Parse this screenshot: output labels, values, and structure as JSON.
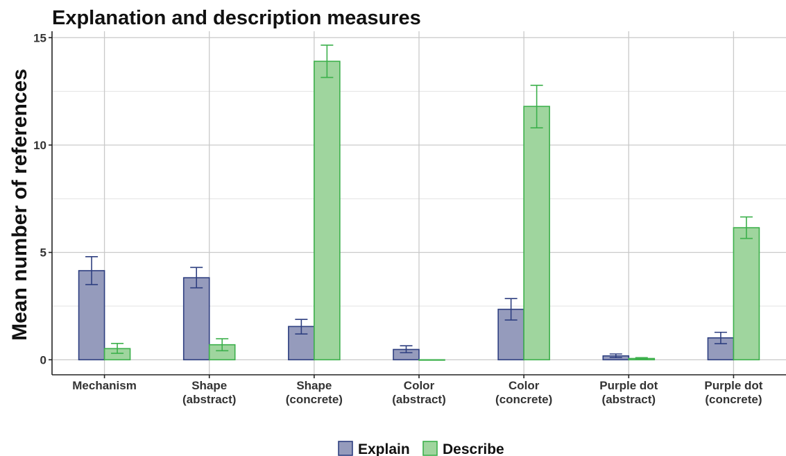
{
  "chart_data": {
    "type": "bar",
    "title": "Explanation and description measures",
    "xlabel": "",
    "ylabel": "Mean number of references",
    "ylim": [
      -0.7,
      15.3
    ],
    "yticks": [
      0,
      5,
      10,
      15
    ],
    "grid": true,
    "legend_position": "bottom",
    "categories": [
      [
        "Mechanism"
      ],
      [
        "Shape",
        "(abstract)"
      ],
      [
        "Shape",
        "(concrete)"
      ],
      [
        "Color",
        "(abstract)"
      ],
      [
        "Color",
        "(concrete)"
      ],
      [
        "Purple dot",
        "(abstract)"
      ],
      [
        "Purple dot",
        "(concrete)"
      ]
    ],
    "series": [
      {
        "name": "Explain",
        "fill": "#959bbc",
        "stroke": "#2e3f80",
        "values": [
          4.15,
          3.82,
          1.55,
          0.48,
          2.35,
          0.18,
          1.02
        ],
        "error_low": [
          3.5,
          3.35,
          1.2,
          0.33,
          1.85,
          0.1,
          0.75
        ],
        "error_high": [
          4.8,
          4.3,
          1.88,
          0.65,
          2.85,
          0.27,
          1.28
        ]
      },
      {
        "name": "Describe",
        "fill": "#9fd59e",
        "stroke": "#3cb04b",
        "values": [
          0.52,
          0.7,
          13.9,
          0.0,
          11.8,
          0.06,
          6.15
        ],
        "error_low": [
          0.3,
          0.42,
          13.15,
          0.0,
          10.8,
          0.02,
          5.65
        ],
        "error_high": [
          0.76,
          0.98,
          14.65,
          0.0,
          12.78,
          0.1,
          6.65
        ]
      }
    ]
  }
}
